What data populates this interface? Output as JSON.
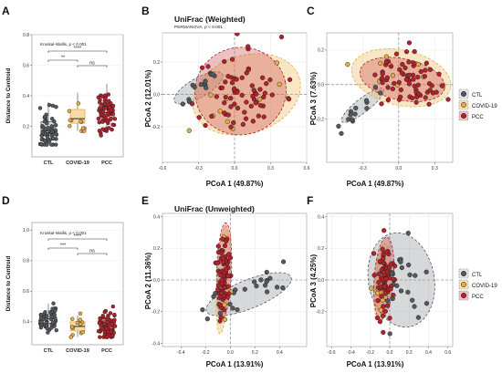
{
  "figure": {
    "panel_letters": [
      "A",
      "B",
      "C",
      "D",
      "E",
      "F"
    ],
    "legend": [
      {
        "label": "CTL",
        "color": "#55595f"
      },
      {
        "label": "COVID-19",
        "color": "#e7ac45"
      },
      {
        "label": "PCC",
        "color": "#b3222b"
      }
    ]
  },
  "chart_data": [
    {
      "panel": "A",
      "type": "boxplot",
      "ylabel": "Distance to Centroid",
      "ylim": [
        0,
        0.8
      ],
      "yticks": [
        0.2,
        0.4,
        0.6,
        0.8
      ],
      "yticklabels": [
        "0.2",
        "0.4",
        "0.6",
        "0.8"
      ],
      "categories": [
        "CTL",
        "COVID-19",
        "PCC"
      ],
      "annotation": "Kruskal-Wallis, p < 0.001",
      "brackets": [
        {
          "from": "CTL",
          "to": "PCC",
          "label": "****"
        },
        {
          "from": "CTL",
          "to": "COVID-19",
          "label": "**"
        },
        {
          "from": "COVID-19",
          "to": "PCC",
          "label": "ns"
        }
      ],
      "boxes": [
        {
          "q1": 0.14,
          "median": 0.17,
          "q3": 0.23,
          "lo": 0.08,
          "hi": 0.36,
          "n": 60,
          "spread": [
            0.08,
            0.5
          ]
        },
        {
          "q1": 0.22,
          "median": 0.25,
          "q3": 0.31,
          "lo": 0.17,
          "hi": 0.42,
          "n": 12,
          "spread": [
            0.17,
            0.44
          ]
        },
        {
          "q1": 0.25,
          "median": 0.29,
          "q3": 0.34,
          "lo": 0.17,
          "hi": 0.48,
          "n": 70,
          "spread": [
            0.14,
            0.52
          ]
        }
      ]
    },
    {
      "panel": "B",
      "type": "scatter",
      "title": "UniFrac (Weighted)",
      "subtitle": "PERMANOVA, p < 0.001",
      "xlabel": "PCoA 1 (49.87%)",
      "ylabel": "PCoA 2 (12.01%)",
      "xlim": [
        -0.6,
        0.6
      ],
      "ylim": [
        -0.42,
        0.38
      ],
      "xticks": [
        -0.6,
        -0.3,
        0.0,
        0.3,
        0.6
      ],
      "xticklabels": [
        "-0.6",
        "-0.3",
        "0.0",
        "0.3",
        "0.6"
      ],
      "yticks": [
        -0.2,
        0.0,
        0.2
      ],
      "yticklabels": [
        "-0.2",
        "0.0",
        "0.2"
      ],
      "ellipses": [
        {
          "group": "CTL",
          "cx": -0.3,
          "cy": 0.04,
          "rx": 0.23,
          "ry": 0.06,
          "angle": -30
        },
        {
          "group": "COVID-19",
          "cx": 0.1,
          "cy": 0.0,
          "rx": 0.46,
          "ry": 0.24,
          "angle": -18
        },
        {
          "group": "PCC",
          "cx": 0.05,
          "cy": 0.02,
          "rx": 0.38,
          "ry": 0.27,
          "angle": -12
        }
      ],
      "groups": [
        {
          "group": "CTL",
          "n": 14,
          "cx": -0.3,
          "cy": 0.04,
          "sx": 0.12,
          "sy": 0.03,
          "angle": -30
        },
        {
          "group": "COVID-19",
          "n": 10,
          "cx": 0.08,
          "cy": 0.0,
          "sx": 0.2,
          "sy": 0.1,
          "angle": -18
        },
        {
          "group": "PCC",
          "n": 70,
          "cx": 0.06,
          "cy": 0.02,
          "sx": 0.17,
          "sy": 0.13,
          "angle": -12
        }
      ]
    },
    {
      "panel": "C",
      "type": "scatter",
      "xlabel": "PCoA 1 (49.87%)",
      "ylabel": "PCoA 3 (7.63%)",
      "xlim": [
        -0.6,
        0.45
      ],
      "ylim": [
        -0.45,
        0.3
      ],
      "xticks": [
        -0.3,
        0.0,
        0.3
      ],
      "xticklabels": [
        "-0.3",
        "0.0",
        "0.3"
      ],
      "yticks": [
        -0.2,
        0.0,
        0.2
      ],
      "yticklabels": [
        "-0.2",
        "0.0",
        "0.2"
      ],
      "ellipses": [
        {
          "group": "CTL",
          "cx": -0.3,
          "cy": -0.12,
          "rx": 0.22,
          "ry": 0.04,
          "angle": -38
        },
        {
          "group": "COVID-19",
          "cx": 0.02,
          "cy": 0.04,
          "rx": 0.42,
          "ry": 0.16,
          "angle": 12
        },
        {
          "group": "PCC",
          "cx": 0.03,
          "cy": 0.03,
          "rx": 0.36,
          "ry": 0.12,
          "angle": 12
        }
      ],
      "groups": [
        {
          "group": "CTL",
          "n": 14,
          "cx": -0.3,
          "cy": -0.12,
          "sx": 0.11,
          "sy": 0.02,
          "angle": -38
        },
        {
          "group": "COVID-19",
          "n": 10,
          "cx": 0.0,
          "cy": 0.04,
          "sx": 0.16,
          "sy": 0.05,
          "angle": 12
        },
        {
          "group": "PCC",
          "n": 70,
          "cx": 0.05,
          "cy": 0.03,
          "sx": 0.15,
          "sy": 0.07,
          "angle": 12
        }
      ]
    },
    {
      "panel": "D",
      "type": "boxplot",
      "ylabel": "Distance to Centroid",
      "ylim": [
        0.25,
        1.05
      ],
      "yticks": [
        0.4,
        0.6,
        0.8,
        1.0
      ],
      "yticklabels": [
        "0.4",
        "0.6",
        "0.8",
        "1.0"
      ],
      "categories": [
        "CTL",
        "COVID-19",
        "PCC"
      ],
      "annotation": "Kruskal-Wallis, p < 0.001",
      "brackets": [
        {
          "from": "CTL",
          "to": "PCC",
          "label": "****"
        },
        {
          "from": "CTL",
          "to": "COVID-19",
          "label": "***"
        },
        {
          "from": "COVID-19",
          "to": "PCC",
          "label": "ns"
        }
      ],
      "boxes": [
        {
          "q1": 0.39,
          "median": 0.42,
          "q3": 0.45,
          "lo": 0.33,
          "hi": 0.52,
          "n": 55,
          "spread": [
            0.33,
            0.67
          ]
        },
        {
          "q1": 0.34,
          "median": 0.37,
          "q3": 0.4,
          "lo": 0.3,
          "hi": 0.44,
          "n": 12,
          "spread": [
            0.3,
            0.46
          ]
        },
        {
          "q1": 0.34,
          "median": 0.37,
          "q3": 0.41,
          "lo": 0.3,
          "hi": 0.47,
          "n": 70,
          "spread": [
            0.3,
            0.5
          ]
        }
      ]
    },
    {
      "panel": "E",
      "type": "scatter",
      "title": "UniFrac (Unweighted)",
      "subtitle": "PERMANOVA, p < 0.001",
      "xlabel": "PCoA 1 (13.91%)",
      "ylabel": "PCoA 2 (11.36%)",
      "xlim": [
        -0.55,
        0.62
      ],
      "ylim": [
        -0.42,
        0.42
      ],
      "xticks": [
        -0.4,
        -0.2,
        0.0,
        0.2,
        0.4
      ],
      "xticklabels": [
        "-0.4",
        "-0.2",
        "0.0",
        "0.2",
        "0.4"
      ],
      "yticks": [
        -0.4,
        -0.2,
        0.0,
        0.2,
        0.4
      ],
      "yticklabels": [
        "-0.4",
        "-0.2",
        "0.0",
        "0.2",
        "0.4"
      ],
      "ellipses": [
        {
          "group": "CTL",
          "cx": 0.15,
          "cy": -0.09,
          "rx": 0.37,
          "ry": 0.09,
          "angle": -22
        },
        {
          "group": "COVID-19",
          "cx": -0.06,
          "cy": 0.0,
          "rx": 0.05,
          "ry": 0.34,
          "angle": 3
        },
        {
          "group": "PCC",
          "cx": -0.05,
          "cy": 0.06,
          "rx": 0.06,
          "ry": 0.3,
          "angle": 2
        }
      ],
      "groups": [
        {
          "group": "CTL",
          "n": 28,
          "cx": 0.12,
          "cy": -0.08,
          "sx": 0.17,
          "sy": 0.05,
          "angle": -22
        },
        {
          "group": "COVID-19",
          "n": 10,
          "cx": -0.06,
          "cy": -0.02,
          "sx": 0.03,
          "sy": 0.12,
          "angle": 3
        },
        {
          "group": "PCC",
          "n": 70,
          "cx": -0.05,
          "cy": 0.05,
          "sx": 0.03,
          "sy": 0.13,
          "angle": 2
        }
      ]
    },
    {
      "panel": "F",
      "type": "scatter",
      "xlabel": "PCoA 1 (13.91%)",
      "ylabel": "PCoA 3 (4.25%)",
      "xlim": [
        -0.65,
        0.65
      ],
      "ylim": [
        -0.42,
        0.42
      ],
      "xticks": [
        -0.6,
        -0.4,
        -0.2,
        0.0,
        0.2,
        0.4,
        0.6
      ],
      "xticklabels": [
        "-0.6",
        "-0.4",
        "-0.2",
        "0.0",
        "0.2",
        "0.4",
        "0.6"
      ],
      "yticks": [
        -0.2,
        0.0,
        0.2,
        0.4
      ],
      "yticklabels": [
        "-0.2",
        "0.0",
        "0.2",
        "0.4"
      ],
      "ellipses": [
        {
          "group": "CTL",
          "cx": 0.12,
          "cy": 0.0,
          "rx": 0.34,
          "ry": 0.3,
          "angle": -10
        },
        {
          "group": "COVID-19",
          "cx": -0.08,
          "cy": -0.01,
          "rx": 0.08,
          "ry": 0.24,
          "angle": 5
        },
        {
          "group": "PCC",
          "cx": -0.06,
          "cy": 0.01,
          "rx": 0.1,
          "ry": 0.26,
          "angle": 4
        }
      ],
      "groups": [
        {
          "group": "CTL",
          "n": 28,
          "cx": 0.14,
          "cy": 0.0,
          "sx": 0.15,
          "sy": 0.13,
          "angle": -10
        },
        {
          "group": "COVID-19",
          "n": 10,
          "cx": -0.08,
          "cy": -0.01,
          "sx": 0.04,
          "sy": 0.1,
          "angle": 5
        },
        {
          "group": "PCC",
          "n": 70,
          "cx": -0.05,
          "cy": 0.01,
          "sx": 0.05,
          "sy": 0.12,
          "angle": 4
        }
      ]
    }
  ]
}
